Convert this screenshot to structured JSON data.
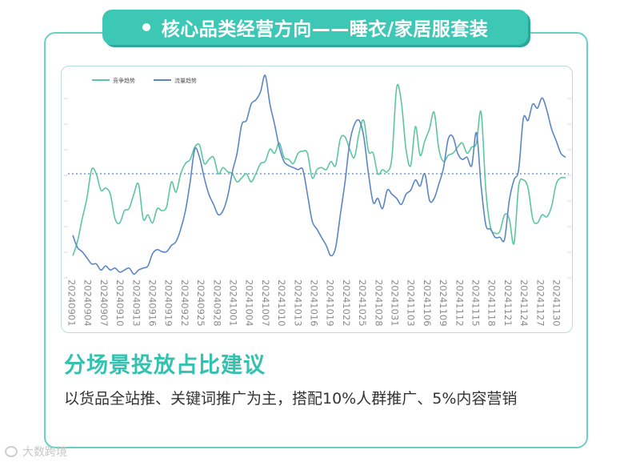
{
  "header": {
    "title": "核心品类经营方向——睡衣/家居服套装"
  },
  "section": {
    "title": "分场景投放占比建议",
    "body": "以货品全站推、关键词推广为主，搭配10%人群推广、5%内容营销"
  },
  "watermark": {
    "text": "大数跨境"
  },
  "colors": {
    "accent": "#3dc8b6",
    "competition": "#5cc79f",
    "traffic": "#5b86c5",
    "avg_line": "#8fb3e6"
  },
  "chart_data": {
    "type": "line",
    "legend": [
      "竞争趋势",
      "流量趋势"
    ],
    "legend_position": "top-left",
    "grid": false,
    "y_unlabeled": true,
    "ylim": [
      0,
      100
    ],
    "reference_line": 50,
    "x_tick_labels": [
      "20240901",
      "20240904",
      "20240907",
      "20240910",
      "20240913",
      "20240916",
      "20240919",
      "20240922",
      "20240925",
      "20240928",
      "20241001",
      "20241004",
      "20241007",
      "20241010",
      "20241013",
      "20241016",
      "20241019",
      "20241022",
      "20241025",
      "20241028",
      "20241031",
      "20241103",
      "20241106",
      "20241109",
      "20241112",
      "20241115",
      "20241118",
      "20241121",
      "20241124",
      "20241127",
      "20241130"
    ],
    "series": [
      {
        "name": "竞争趋势",
        "values": [
          10,
          17,
          28,
          38,
          52,
          50,
          42,
          43,
          40,
          28,
          26,
          32,
          33,
          40,
          45,
          28,
          30,
          26,
          33,
          32,
          34,
          46,
          41,
          50,
          55,
          57,
          63,
          64,
          55,
          57,
          58,
          50,
          53,
          51,
          50,
          46,
          48,
          50,
          46,
          50,
          55,
          56,
          62,
          60,
          65,
          58,
          57,
          55,
          60,
          61,
          60,
          48,
          52,
          53,
          52,
          56,
          54,
          67,
          68,
          62,
          58,
          70,
          76,
          61,
          60,
          50,
          52,
          51,
          58,
          92,
          85,
          62,
          54,
          73,
          59,
          66,
          72,
          80,
          62,
          56,
          59,
          60,
          63,
          65,
          60,
          63,
          65,
          80,
          42,
          24,
          21,
          22,
          30,
          28,
          16,
          44,
          47,
          43,
          28,
          26,
          30,
          29,
          34,
          45,
          48,
          48
        ]
      },
      {
        "name": "流量趋势",
        "values": [
          20,
          14,
          12,
          9,
          6,
          6,
          3,
          5,
          3,
          4,
          2,
          3,
          4,
          1,
          3,
          4,
          5,
          11,
          13,
          12,
          12,
          15,
          17,
          23,
          32,
          46,
          62,
          58,
          48,
          40,
          35,
          30,
          32,
          39,
          51,
          60,
          74,
          76,
          84,
          86,
          90,
          98,
          84,
          74,
          63,
          56,
          54,
          53,
          52,
          52,
          40,
          27,
          23,
          19,
          15,
          10,
          14,
          30,
          46,
          65,
          74,
          76,
          68,
          50,
          36,
          38,
          33,
          42,
          40,
          38,
          35,
          40,
          42,
          47,
          44,
          50,
          37,
          38,
          45,
          53,
          67,
          68,
          60,
          57,
          58,
          54,
          70,
          44,
          25,
          23,
          19,
          19,
          18,
          37,
          47,
          52,
          77,
          76,
          84,
          82,
          87,
          81,
          72,
          66,
          60,
          58
        ]
      }
    ]
  }
}
